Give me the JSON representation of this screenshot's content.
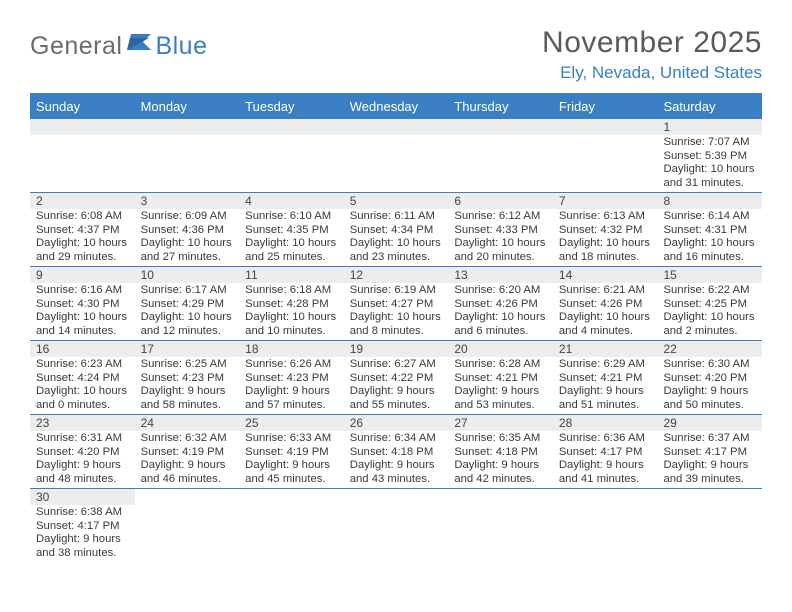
{
  "logo": {
    "text1": "General",
    "text2": "Blue"
  },
  "title": "November 2025",
  "location": "Ely, Nevada, United States",
  "colors": {
    "header_bg": "#3a7fc4",
    "header_text": "#ffffff",
    "daynum_bg": "#ededed",
    "body_text": "#3a3a3a",
    "title_text": "#5a5a5a",
    "location_text": "#3a7fc4",
    "logo_gray": "#6c6c6c",
    "logo_blue": "#3a7fc4",
    "page_bg": "#ffffff",
    "row_border": "#3a7fc4"
  },
  "typography": {
    "title_fontsize": 30,
    "location_fontsize": 17,
    "dayhead_fontsize": 13,
    "daynum_fontsize": 12,
    "body_fontsize": 11.3
  },
  "day_names": [
    "Sunday",
    "Monday",
    "Tuesday",
    "Wednesday",
    "Thursday",
    "Friday",
    "Saturday"
  ],
  "weeks": [
    [
      null,
      null,
      null,
      null,
      null,
      null,
      {
        "n": "1",
        "sr": "7:07 AM",
        "ss": "5:39 PM",
        "dl": "10 hours and 31 minutes."
      }
    ],
    [
      {
        "n": "2",
        "sr": "6:08 AM",
        "ss": "4:37 PM",
        "dl": "10 hours and 29 minutes."
      },
      {
        "n": "3",
        "sr": "6:09 AM",
        "ss": "4:36 PM",
        "dl": "10 hours and 27 minutes."
      },
      {
        "n": "4",
        "sr": "6:10 AM",
        "ss": "4:35 PM",
        "dl": "10 hours and 25 minutes."
      },
      {
        "n": "5",
        "sr": "6:11 AM",
        "ss": "4:34 PM",
        "dl": "10 hours and 23 minutes."
      },
      {
        "n": "6",
        "sr": "6:12 AM",
        "ss": "4:33 PM",
        "dl": "10 hours and 20 minutes."
      },
      {
        "n": "7",
        "sr": "6:13 AM",
        "ss": "4:32 PM",
        "dl": "10 hours and 18 minutes."
      },
      {
        "n": "8",
        "sr": "6:14 AM",
        "ss": "4:31 PM",
        "dl": "10 hours and 16 minutes."
      }
    ],
    [
      {
        "n": "9",
        "sr": "6:16 AM",
        "ss": "4:30 PM",
        "dl": "10 hours and 14 minutes."
      },
      {
        "n": "10",
        "sr": "6:17 AM",
        "ss": "4:29 PM",
        "dl": "10 hours and 12 minutes."
      },
      {
        "n": "11",
        "sr": "6:18 AM",
        "ss": "4:28 PM",
        "dl": "10 hours and 10 minutes."
      },
      {
        "n": "12",
        "sr": "6:19 AM",
        "ss": "4:27 PM",
        "dl": "10 hours and 8 minutes."
      },
      {
        "n": "13",
        "sr": "6:20 AM",
        "ss": "4:26 PM",
        "dl": "10 hours and 6 minutes."
      },
      {
        "n": "14",
        "sr": "6:21 AM",
        "ss": "4:26 PM",
        "dl": "10 hours and 4 minutes."
      },
      {
        "n": "15",
        "sr": "6:22 AM",
        "ss": "4:25 PM",
        "dl": "10 hours and 2 minutes."
      }
    ],
    [
      {
        "n": "16",
        "sr": "6:23 AM",
        "ss": "4:24 PM",
        "dl": "10 hours and 0 minutes."
      },
      {
        "n": "17",
        "sr": "6:25 AM",
        "ss": "4:23 PM",
        "dl": "9 hours and 58 minutes."
      },
      {
        "n": "18",
        "sr": "6:26 AM",
        "ss": "4:23 PM",
        "dl": "9 hours and 57 minutes."
      },
      {
        "n": "19",
        "sr": "6:27 AM",
        "ss": "4:22 PM",
        "dl": "9 hours and 55 minutes."
      },
      {
        "n": "20",
        "sr": "6:28 AM",
        "ss": "4:21 PM",
        "dl": "9 hours and 53 minutes."
      },
      {
        "n": "21",
        "sr": "6:29 AM",
        "ss": "4:21 PM",
        "dl": "9 hours and 51 minutes."
      },
      {
        "n": "22",
        "sr": "6:30 AM",
        "ss": "4:20 PM",
        "dl": "9 hours and 50 minutes."
      }
    ],
    [
      {
        "n": "23",
        "sr": "6:31 AM",
        "ss": "4:20 PM",
        "dl": "9 hours and 48 minutes."
      },
      {
        "n": "24",
        "sr": "6:32 AM",
        "ss": "4:19 PM",
        "dl": "9 hours and 46 minutes."
      },
      {
        "n": "25",
        "sr": "6:33 AM",
        "ss": "4:19 PM",
        "dl": "9 hours and 45 minutes."
      },
      {
        "n": "26",
        "sr": "6:34 AM",
        "ss": "4:18 PM",
        "dl": "9 hours and 43 minutes."
      },
      {
        "n": "27",
        "sr": "6:35 AM",
        "ss": "4:18 PM",
        "dl": "9 hours and 42 minutes."
      },
      {
        "n": "28",
        "sr": "6:36 AM",
        "ss": "4:17 PM",
        "dl": "9 hours and 41 minutes."
      },
      {
        "n": "29",
        "sr": "6:37 AM",
        "ss": "4:17 PM",
        "dl": "9 hours and 39 minutes."
      }
    ],
    [
      {
        "n": "30",
        "sr": "6:38 AM",
        "ss": "4:17 PM",
        "dl": "9 hours and 38 minutes."
      },
      null,
      null,
      null,
      null,
      null,
      null
    ]
  ]
}
